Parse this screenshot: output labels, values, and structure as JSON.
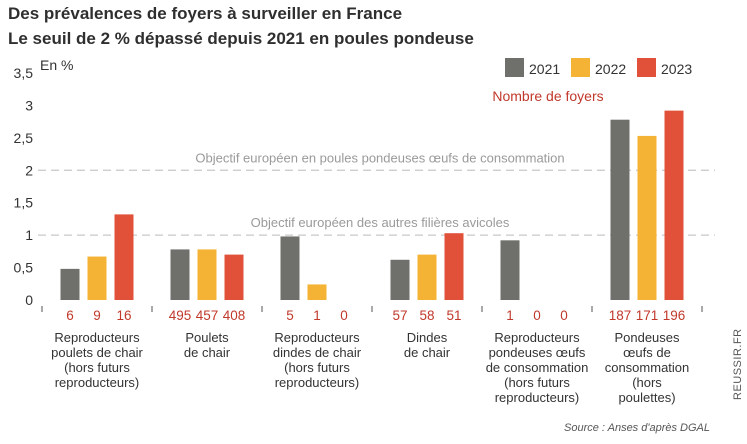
{
  "chart_data": {
    "type": "bar",
    "title": "Des prévalences de foyers à surveiller en France",
    "subtitle": "Le seuil de 2 % dépassé depuis 2021 en poules pondeuse",
    "ylabel": "En %",
    "ylim": [
      0,
      3.5
    ],
    "yticks": [
      "0",
      "0,5",
      "1",
      "1,5",
      "2",
      "2,5",
      "3",
      "3,5"
    ],
    "ytick_values": [
      0,
      0.5,
      1,
      1.5,
      2,
      2.5,
      3,
      3.5
    ],
    "grid": false,
    "legend_position": "top-right",
    "categories": [
      [
        "Reproducteurs",
        "poulets de chair",
        "(hors futurs",
        "reproducteurs)"
      ],
      [
        "Poulets",
        "de chair"
      ],
      [
        "Reproducteurs",
        "dindes de chair",
        "(hors futurs",
        "reproducteurs)"
      ],
      [
        "Dindes",
        "de chair"
      ],
      [
        "Reproducteurs",
        "pondeuses œufs",
        "de consommation",
        "(hors futurs",
        "reproducteurs)"
      ],
      [
        "Pondeuses",
        "œufs de",
        "consommation",
        "(hors",
        "poulettes)"
      ]
    ],
    "series": [
      {
        "name": "2021",
        "color": "#6f6f6b",
        "values": [
          0.48,
          0.78,
          0.98,
          0.62,
          0.92,
          2.78
        ]
      },
      {
        "name": "2022",
        "color": "#f5b335",
        "values": [
          0.67,
          0.78,
          0.24,
          0.7,
          0,
          2.53
        ]
      },
      {
        "name": "2023",
        "color": "#e1513a",
        "values": [
          1.32,
          0.7,
          0,
          1.03,
          0,
          2.92
        ]
      }
    ],
    "counts_label": "Nombre de foyers",
    "counts": [
      [
        "6",
        "9",
        "16"
      ],
      [
        "495",
        "457",
        "408"
      ],
      [
        "5",
        "1",
        "0"
      ],
      [
        "57",
        "58",
        "51"
      ],
      [
        "1",
        "0",
        "0"
      ],
      [
        "187",
        "171",
        "196"
      ]
    ],
    "reference_lines": [
      {
        "value": 2,
        "label": "Objectif européen en poules pondeuses œufs de consommation"
      },
      {
        "value": 1,
        "label": "Objectif européen des autres filières avicoles"
      }
    ],
    "source": "Source : Anses d'après DGAL",
    "side_label": "REUSSIR.FR"
  }
}
